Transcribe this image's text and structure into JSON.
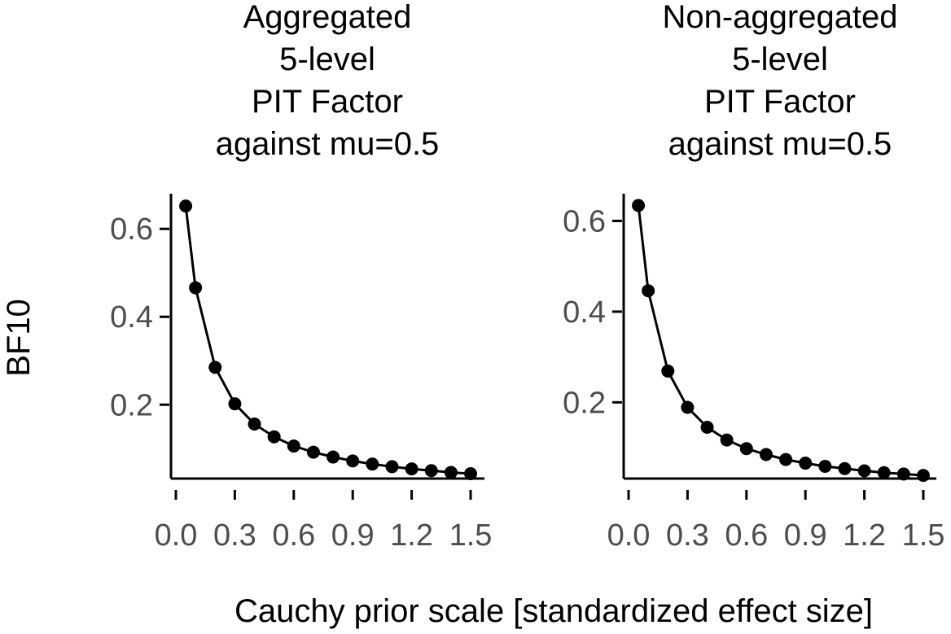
{
  "chart_data": {
    "shared": {
      "xlabel": "Cauchy prior scale [standardized effect size]",
      "ylabel": "BF10",
      "x_ticks": [
        0.0,
        0.3,
        0.6,
        0.9,
        1.2,
        1.5
      ],
      "x_tick_labels": [
        "0.0",
        "0.3",
        "0.6",
        "0.9",
        "1.2",
        "1.5"
      ],
      "y_ticks": [
        0.2,
        0.4,
        0.6
      ],
      "y_tick_labels": [
        "0.2",
        "0.4",
        "0.6"
      ],
      "point_color": "#000000",
      "line_color": "#000000"
    },
    "panels": [
      {
        "type": "line",
        "title_lines": [
          "Aggregated",
          "5-level",
          "PIT Factor",
          "against mu=0.5"
        ],
        "xlim": [
          0.0,
          1.5
        ],
        "ylim": [
          0.032,
          0.68
        ],
        "x": [
          0.05,
          0.1,
          0.2,
          0.3,
          0.4,
          0.5,
          0.6,
          0.7,
          0.8,
          0.9,
          1.0,
          1.1,
          1.2,
          1.3,
          1.4,
          1.5
        ],
        "y": [
          0.652,
          0.466,
          0.285,
          0.202,
          0.156,
          0.127,
          0.106,
          0.092,
          0.081,
          0.072,
          0.065,
          0.059,
          0.054,
          0.05,
          0.046,
          0.043
        ]
      },
      {
        "type": "line",
        "title_lines": [
          "Non-aggregated",
          "5-level",
          "PIT Factor",
          "against mu=0.5"
        ],
        "xlim": [
          0.0,
          1.5
        ],
        "ylim": [
          0.032,
          0.66
        ],
        "x": [
          0.05,
          0.1,
          0.2,
          0.3,
          0.4,
          0.5,
          0.6,
          0.7,
          0.8,
          0.9,
          1.0,
          1.1,
          1.2,
          1.3,
          1.4,
          1.5
        ],
        "y": [
          0.634,
          0.446,
          0.269,
          0.189,
          0.145,
          0.117,
          0.098,
          0.085,
          0.074,
          0.066,
          0.059,
          0.054,
          0.049,
          0.045,
          0.042,
          0.039
        ]
      }
    ]
  }
}
